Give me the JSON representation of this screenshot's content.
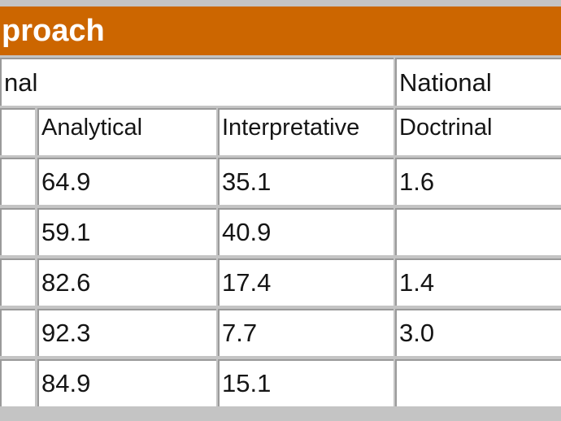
{
  "header": {
    "title": "proach"
  },
  "group_headers": [
    "nal",
    "National"
  ],
  "columns": [
    "Analytical",
    "Interpretative",
    "Doctrinal"
  ],
  "rows": [
    [
      "64.9",
      "35.1",
      "1.6"
    ],
    [
      "59.1",
      "40.9",
      null
    ],
    [
      "82.6",
      "17.4",
      "1.4"
    ],
    [
      "92.3",
      "7.7",
      "3.0"
    ],
    [
      "84.9",
      "15.1",
      null
    ]
  ]
}
